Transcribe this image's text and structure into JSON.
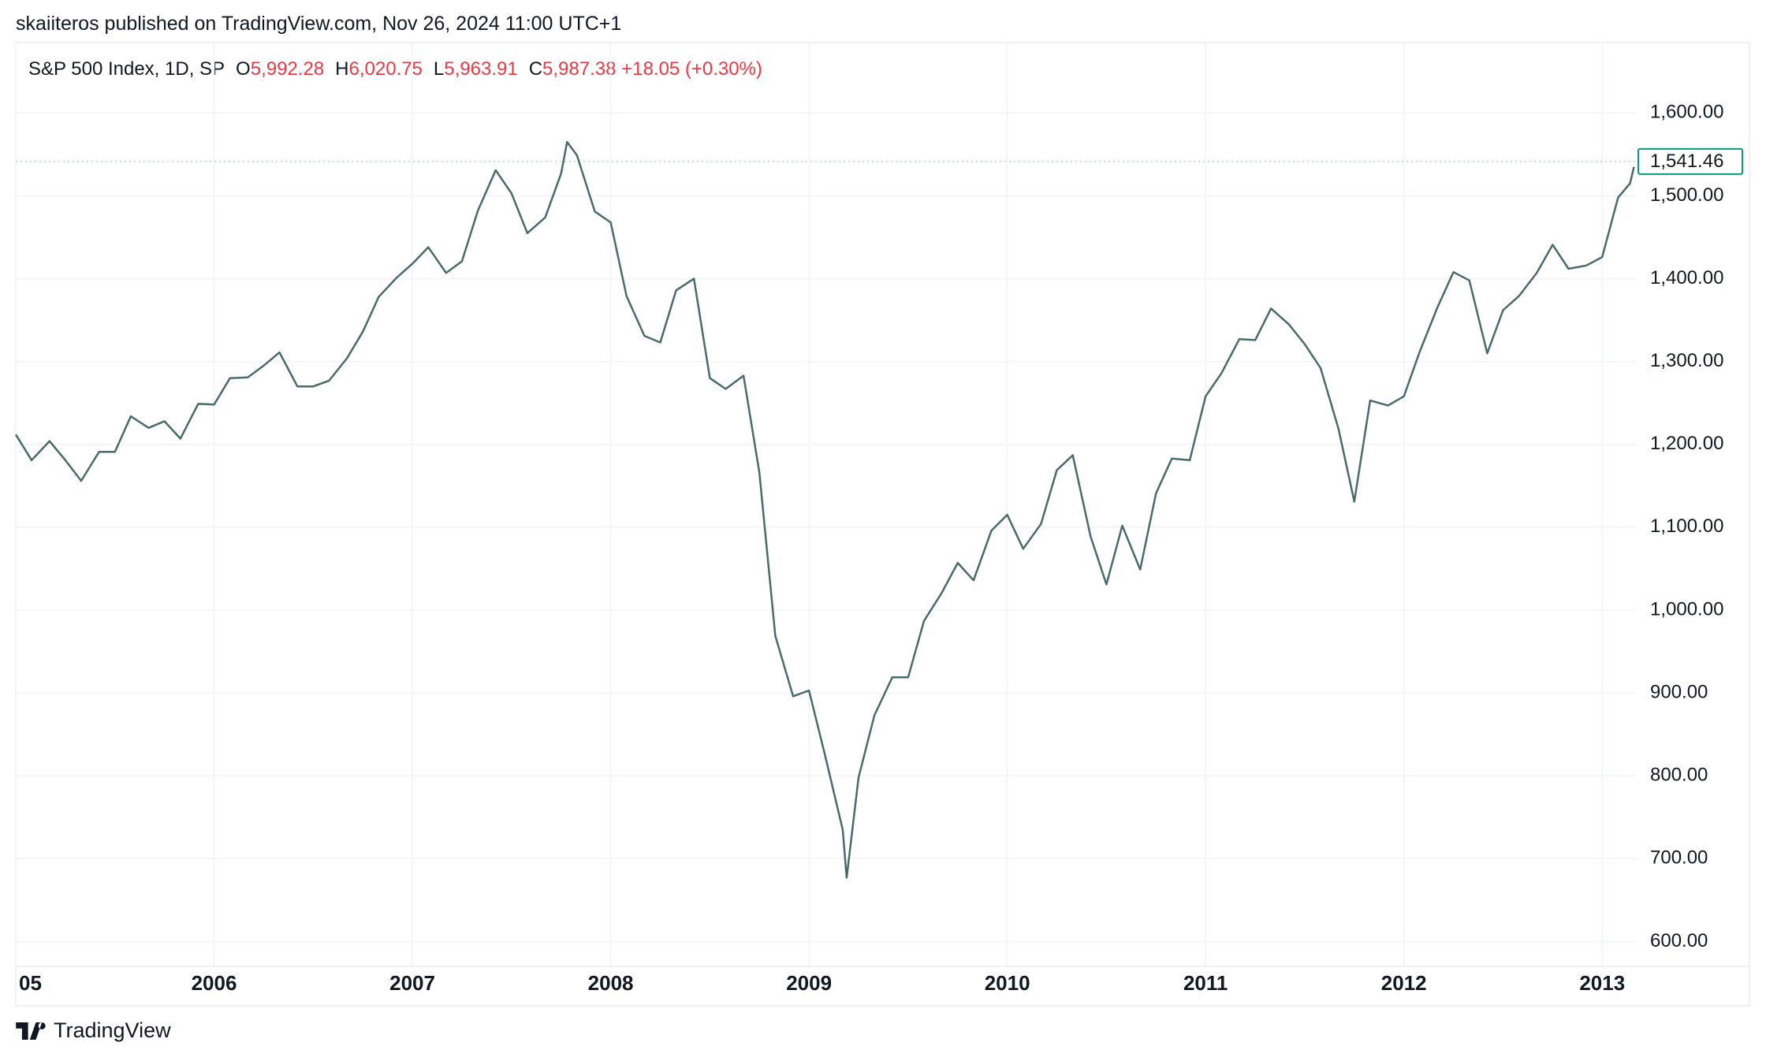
{
  "header": {
    "attribution": "skaiiteros published on TradingView.com, Nov 26, 2024 11:00 UTC+1",
    "symbol": "S&P 500 Index, 1D, SP",
    "ohlc": [
      {
        "key": "O",
        "value": "5,992.28"
      },
      {
        "key": "H",
        "value": "6,020.75"
      },
      {
        "key": "L",
        "value": "5,963.91"
      },
      {
        "key": "C",
        "value": "5,987.38"
      }
    ],
    "change": "+18.05 (+0.30%)"
  },
  "footer": {
    "brand": "TradingView"
  },
  "chart_data": {
    "type": "line",
    "x": [
      2005.0,
      2005.08,
      2005.17,
      2005.25,
      2005.33,
      2005.42,
      2005.5,
      2005.58,
      2005.67,
      2005.75,
      2005.83,
      2005.92,
      2006.0,
      2006.08,
      2006.17,
      2006.25,
      2006.33,
      2006.42,
      2006.5,
      2006.58,
      2006.67,
      2006.75,
      2006.83,
      2006.92,
      2007.0,
      2007.08,
      2007.17,
      2007.25,
      2007.33,
      2007.42,
      2007.5,
      2007.58,
      2007.67,
      2007.75,
      2007.78,
      2007.83,
      2007.92,
      2008.0,
      2008.08,
      2008.17,
      2008.25,
      2008.33,
      2008.42,
      2008.5,
      2008.58,
      2008.67,
      2008.75,
      2008.83,
      2008.92,
      2009.0,
      2009.08,
      2009.17,
      2009.19,
      2009.25,
      2009.33,
      2009.42,
      2009.5,
      2009.58,
      2009.67,
      2009.75,
      2009.83,
      2009.92,
      2010.0,
      2010.08,
      2010.17,
      2010.25,
      2010.33,
      2010.42,
      2010.5,
      2010.58,
      2010.67,
      2010.75,
      2010.83,
      2010.92,
      2011.0,
      2011.08,
      2011.17,
      2011.25,
      2011.33,
      2011.42,
      2011.5,
      2011.58,
      2011.67,
      2011.75,
      2011.83,
      2011.92,
      2012.0,
      2012.08,
      2012.17,
      2012.25,
      2012.33,
      2012.42,
      2012.5,
      2012.58,
      2012.67,
      2012.75,
      2012.83,
      2012.92,
      2013.0,
      2013.08,
      2013.14,
      2013.16
    ],
    "series": [
      {
        "color": "#4a6b68",
        "values": [
          1212,
          1181,
          1204,
          1181,
          1156,
          1191,
          1191,
          1234,
          1220,
          1228,
          1207,
          1249,
          1248,
          1280,
          1281,
          1295,
          1311,
          1270,
          1270,
          1277,
          1304,
          1336,
          1378,
          1401,
          1418,
          1438,
          1407,
          1421,
          1482,
          1531,
          1503,
          1455,
          1474,
          1527,
          1565,
          1549,
          1481,
          1468,
          1379,
          1331,
          1323,
          1386,
          1400,
          1280,
          1267,
          1283,
          1166,
          969,
          896,
          903,
          826,
          735,
          677,
          798,
          873,
          919,
          919,
          987,
          1021,
          1057,
          1036,
          1096,
          1115,
          1074,
          1104,
          1169,
          1187,
          1089,
          1031,
          1102,
          1049,
          1141,
          1183,
          1181,
          1258,
          1286,
          1327,
          1326,
          1364,
          1345,
          1321,
          1292,
          1219,
          1131,
          1253,
          1247,
          1258,
          1312,
          1366,
          1408,
          1398,
          1310,
          1362,
          1379,
          1407,
          1441,
          1412,
          1416,
          1426,
          1498,
          1515,
          1535
        ]
      }
    ],
    "last_price": {
      "value": 1541.46,
      "label": "1,541.46",
      "color": "#089981"
    },
    "xlim": [
      2005,
      2013.17
    ],
    "xticks": [
      {
        "value": 2005,
        "label": "05"
      },
      2006,
      2007,
      2008,
      2009,
      2010,
      2011,
      2012,
      2013
    ],
    "ylim": [
      570,
      1685
    ],
    "yticks": [
      {
        "value": 600,
        "label": "600.00"
      },
      {
        "value": 700,
        "label": "700.00"
      },
      {
        "value": 800,
        "label": "800.00"
      },
      {
        "value": 900,
        "label": "900.00"
      },
      {
        "value": 1000,
        "label": "1,000.00"
      },
      {
        "value": 1100,
        "label": "1,100.00"
      },
      {
        "value": 1200,
        "label": "1,200.00"
      },
      {
        "value": 1300,
        "label": "1,300.00"
      },
      {
        "value": 1400,
        "label": "1,400.00"
      },
      {
        "value": 1500,
        "label": "1,500.00"
      },
      {
        "value": 1600,
        "label": "1,600.00"
      }
    ],
    "grid": true
  }
}
